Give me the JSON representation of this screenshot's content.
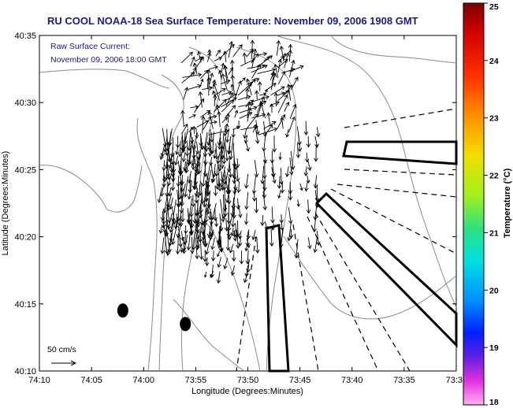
{
  "chart_data": {
    "type": "scatter",
    "title": "RU COOL  NOAA-18  Sea Surface Temperature:  November 09, 2006 1908 GMT",
    "inset_lines": [
      "Raw Surface Current:",
      "November 09, 2006 18:00 GMT"
    ],
    "xlabel": "Longitude (Degrees:Minutes)",
    "ylabel": "Latitude (Degrees:Minutes)",
    "x_ticks": [
      "74:10",
      "74:05",
      "74:00",
      "73:55",
      "73:50",
      "73:45",
      "73:40",
      "73:35",
      "73:3"
    ],
    "y_ticks": [
      "40:35",
      "40:30",
      "40:25",
      "40:20",
      "40:15",
      "40:10"
    ],
    "xlim_min": [
      -74.1667,
      -73.5
    ],
    "ylim_min": [
      40.1667,
      40.5833
    ],
    "colorbar": {
      "label": "Temperature (°C)",
      "ticks": [
        "25",
        "24",
        "23",
        "22",
        "21",
        "20",
        "19",
        "18"
      ],
      "range": [
        18,
        25
      ]
    },
    "scale_arrow_label": "50 cm/s",
    "markers": [
      {
        "lon": -74.0333,
        "lat": 40.2417
      },
      {
        "lon": -73.9333,
        "lat": 40.225
      }
    ],
    "colors": {
      "title": "#1a1a8c",
      "contour": "#8a8a8a",
      "arrows": "#000000"
    }
  }
}
